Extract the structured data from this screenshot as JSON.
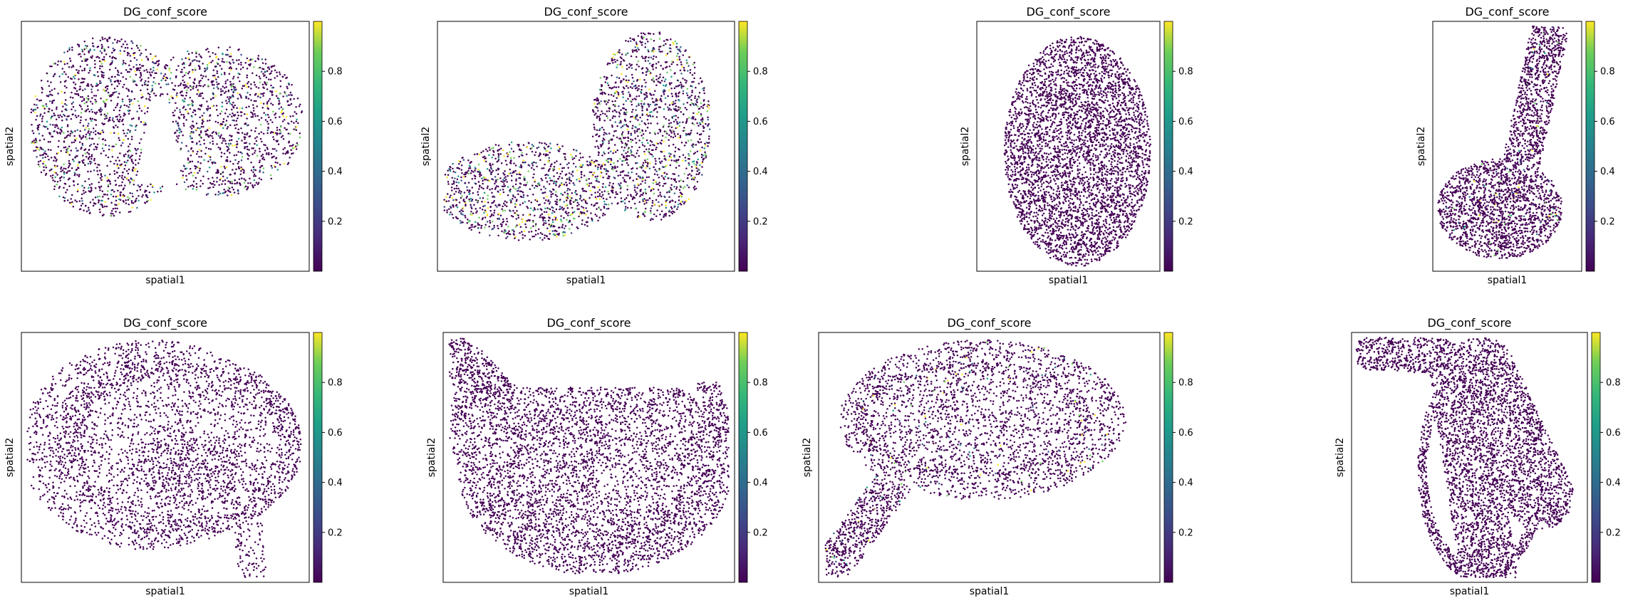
{
  "chart_data": [
    {
      "type": "scatter",
      "title": "DG_conf_score",
      "xlabel": "spatial1",
      "ylabel": "spatial2",
      "colorbar": {
        "colormap": "viridis",
        "ticks": [
          "0.2",
          "0.4",
          "0.6",
          "0.8"
        ],
        "range": [
          0,
          1
        ]
      },
      "shape": "two-lobe",
      "n_points": 2400,
      "score_level": 0.25
    },
    {
      "type": "scatter",
      "title": "DG_conf_score",
      "xlabel": "spatial1",
      "ylabel": "spatial2",
      "colorbar": {
        "colormap": "viridis",
        "ticks": [
          "0.2",
          "0.4",
          "0.6",
          "0.8"
        ],
        "range": [
          0,
          1
        ]
      },
      "shape": "two-lobe-split",
      "n_points": 2500,
      "score_level": 0.3
    },
    {
      "type": "scatter",
      "title": "DG_conf_score",
      "xlabel": "spatial1",
      "ylabel": "spatial2",
      "colorbar": {
        "colormap": "viridis",
        "ticks": [
          "0.2",
          "0.4",
          "0.6",
          "0.8"
        ],
        "range": [
          0,
          1
        ]
      },
      "shape": "oval-dense",
      "n_points": 4200,
      "score_level": 0.0
    },
    {
      "type": "scatter",
      "title": "DG_conf_score",
      "xlabel": "spatial1",
      "ylabel": "spatial2",
      "colorbar": {
        "colormap": "viridis",
        "ticks": [
          "0.2",
          "0.4",
          "0.6",
          "0.8"
        ],
        "range": [
          0,
          1
        ]
      },
      "shape": "tail-blob",
      "n_points": 2600,
      "score_level": 0.03
    },
    {
      "type": "scatter",
      "title": "DG_conf_score",
      "xlabel": "spatial1",
      "ylabel": "spatial2",
      "colorbar": {
        "colormap": "viridis",
        "ticks": [
          "0.2",
          "0.4",
          "0.6",
          "0.8"
        ],
        "range": [
          0,
          1
        ]
      },
      "shape": "hippocampus-a",
      "n_points": 3600,
      "score_level": 0.0
    },
    {
      "type": "scatter",
      "title": "DG_conf_score",
      "xlabel": "spatial1",
      "ylabel": "spatial2",
      "colorbar": {
        "colormap": "viridis",
        "ticks": [
          "0.2",
          "0.4",
          "0.6",
          "0.8"
        ],
        "range": [
          0,
          1
        ]
      },
      "shape": "bowl",
      "n_points": 4800,
      "score_level": 0.0
    },
    {
      "type": "scatter",
      "title": "DG_conf_score",
      "xlabel": "spatial1",
      "ylabel": "spatial2",
      "colorbar": {
        "colormap": "viridis",
        "ticks": [
          "0.2",
          "0.4",
          "0.6",
          "0.8"
        ],
        "range": [
          0,
          1
        ]
      },
      "shape": "hippocampus-c",
      "n_points": 3400,
      "score_level": 0.04
    },
    {
      "type": "scatter",
      "title": "DG_conf_score",
      "xlabel": "spatial1",
      "ylabel": "spatial2",
      "colorbar": {
        "colormap": "viridis",
        "ticks": [
          "0.2",
          "0.4",
          "0.6",
          "0.8"
        ],
        "range": [
          0,
          1
        ]
      },
      "shape": "hook",
      "n_points": 4200,
      "score_level": 0.0
    }
  ]
}
